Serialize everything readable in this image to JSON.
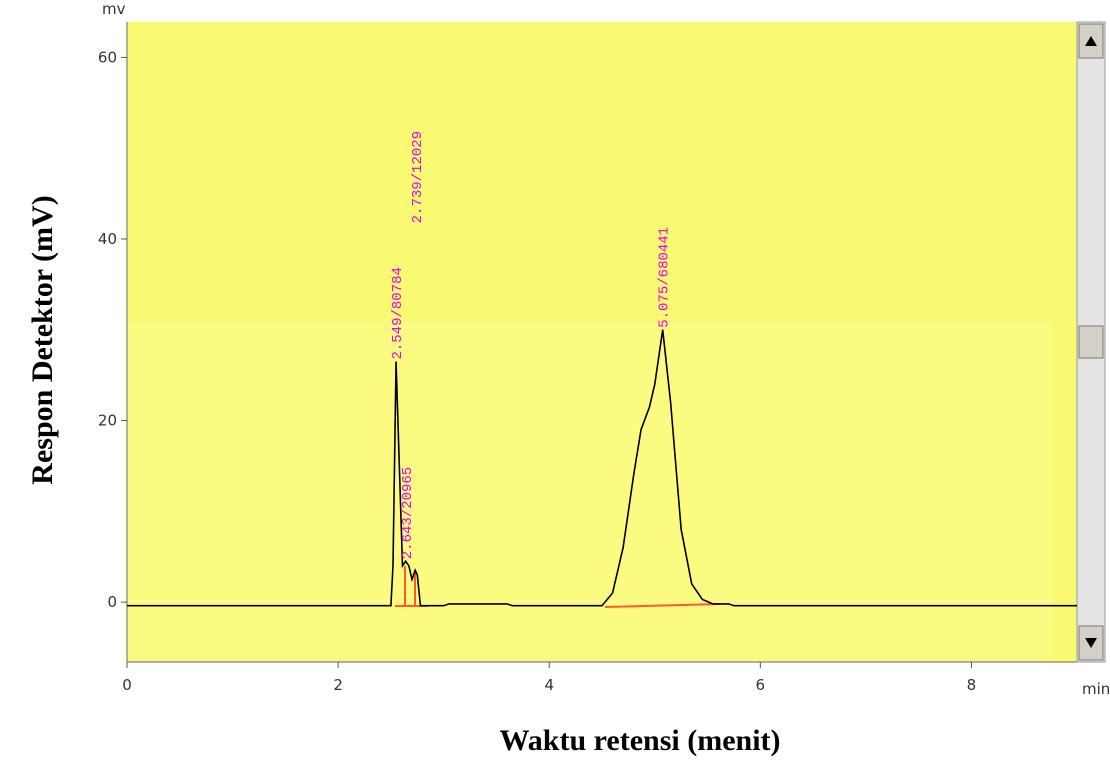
{
  "chart_data": {
    "type": "line",
    "y_title": "Respon Detektor (mV)",
    "x_title": "Waktu retensi (menit)",
    "y_unit": "mv",
    "x_unit": "min",
    "x": [
      0,
      2.5,
      2.52,
      2.549,
      2.58,
      2.61,
      2.64,
      2.67,
      2.7,
      2.73,
      2.75,
      2.78,
      2.85,
      3.0,
      3.05,
      3.6,
      3.65,
      4.5,
      4.6,
      4.7,
      4.8,
      4.87,
      4.95,
      5.0,
      5.075,
      5.15,
      5.25,
      5.35,
      5.45,
      5.55,
      5.7,
      5.75,
      9.0
    ],
    "series": [
      {
        "color": "#000000",
        "values": [
          -0.4,
          -0.4,
          4,
          26.5,
          15,
          4,
          4.5,
          4,
          2.5,
          3.5,
          3,
          -0.4,
          -0.4,
          -0.4,
          -0.2,
          -0.2,
          -0.4,
          -0.4,
          1,
          6,
          14,
          19,
          21.5,
          24,
          30,
          22,
          8,
          2,
          0.3,
          -0.2,
          -0.2,
          -0.4,
          -0.4
        ]
      }
    ],
    "annotations": [
      {
        "label": "2.549/80784",
        "x": 2.549,
        "y": 26.5
      },
      {
        "label": "2.643/20965",
        "x": 2.643,
        "y": 4.5
      },
      {
        "label": "2.739/12029",
        "x": 2.739,
        "y": 41.5
      },
      {
        "label": "5.075/680441",
        "x": 5.075,
        "y": 30
      }
    ],
    "annotation_color": "#e800e8",
    "xlim": [
      0,
      9
    ],
    "ylim": [
      -6.6,
      63.9
    ],
    "xticks": [
      0,
      2,
      4,
      6,
      8
    ],
    "yticks": [
      0,
      20,
      40,
      60
    ]
  }
}
